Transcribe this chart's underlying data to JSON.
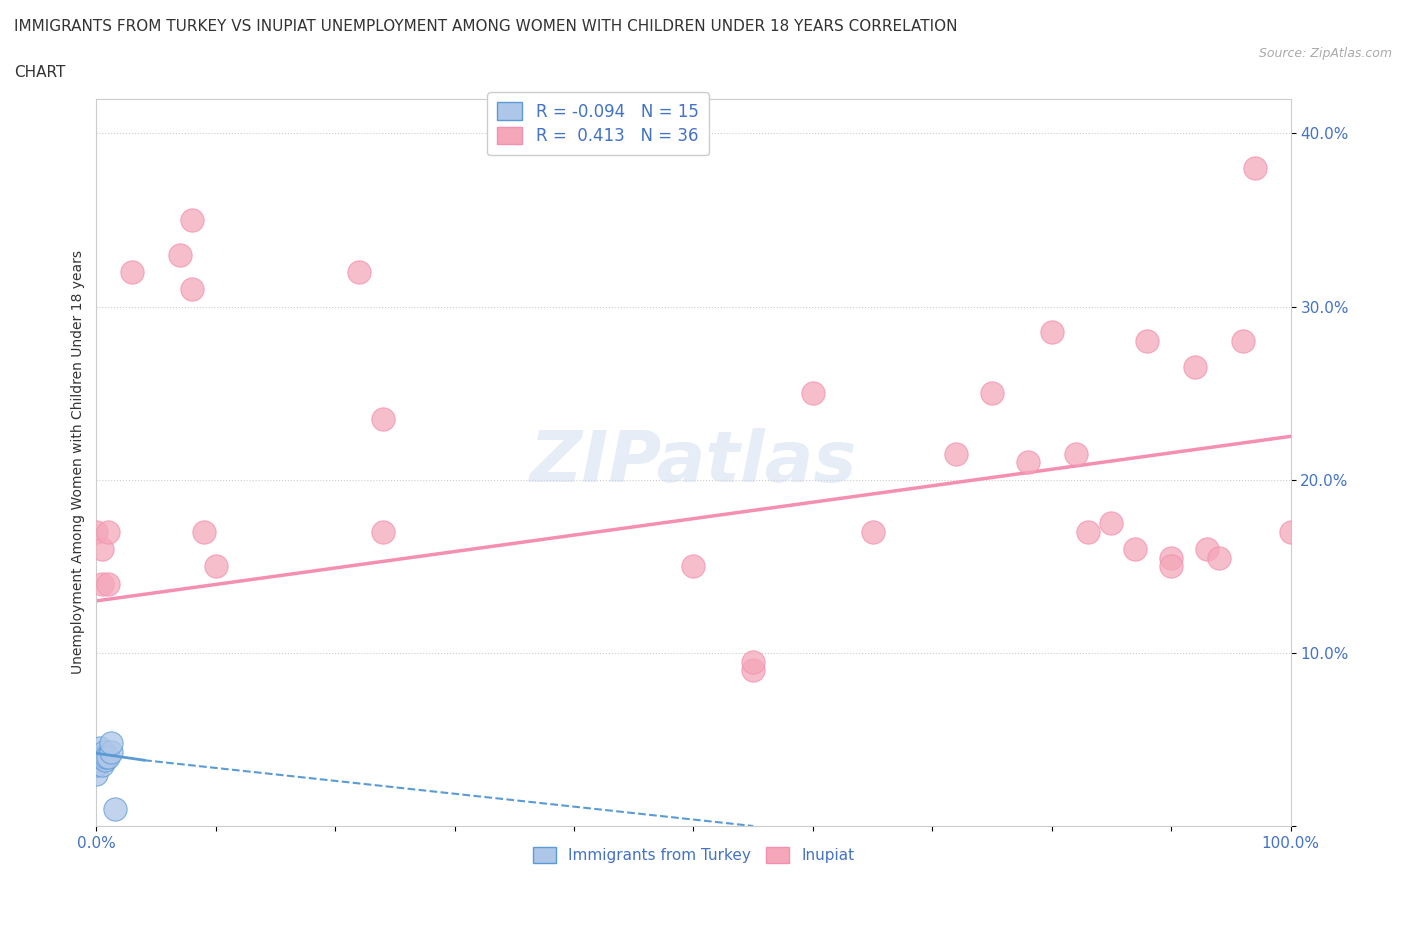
{
  "title_line1": "IMMIGRANTS FROM TURKEY VS INUPIAT UNEMPLOYMENT AMONG WOMEN WITH CHILDREN UNDER 18 YEARS CORRELATION",
  "title_line2": "CHART",
  "source": "Source: ZipAtlas.com",
  "ylabel": "Unemployment Among Women with Children Under 18 years",
  "xlim": [
    0,
    1.0
  ],
  "ylim": [
    0,
    0.42
  ],
  "xticks": [
    0.0,
    0.1,
    0.2,
    0.3,
    0.4,
    0.5,
    0.6,
    0.7,
    0.8,
    0.9,
    1.0
  ],
  "xticklabels": [
    "0.0%",
    "",
    "",
    "",
    "",
    "",
    "",
    "",
    "",
    "",
    "100.0%"
  ],
  "yticks": [
    0.0,
    0.1,
    0.2,
    0.3,
    0.4
  ],
  "yticklabels": [
    "",
    "10.0%",
    "20.0%",
    "30.0%",
    "40.0%"
  ],
  "watermark": "ZIPatlas",
  "turkey_color": "#aec6e8",
  "inupiat_color": "#f4a7b9",
  "turkey_line_color": "#5b9bd5",
  "inupiat_line_color": "#f48fb1",
  "turkey_scatter": {
    "x": [
      0.0,
      0.0,
      0.0,
      0.003,
      0.003,
      0.005,
      0.005,
      0.006,
      0.006,
      0.007,
      0.008,
      0.01,
      0.012,
      0.012,
      0.016
    ],
    "y": [
      0.03,
      0.04,
      0.035,
      0.04,
      0.045,
      0.035,
      0.04,
      0.04,
      0.043,
      0.038,
      0.04,
      0.04,
      0.043,
      0.048,
      0.01
    ]
  },
  "inupiat_scatter": {
    "x": [
      0.0,
      0.005,
      0.005,
      0.01,
      0.01,
      0.03,
      0.07,
      0.08,
      0.08,
      0.09,
      0.1,
      0.22,
      0.24,
      0.24,
      0.5,
      0.55,
      0.55,
      0.6,
      0.65,
      0.72,
      0.75,
      0.78,
      0.8,
      0.82,
      0.83,
      0.85,
      0.87,
      0.88,
      0.9,
      0.9,
      0.92,
      0.93,
      0.94,
      0.96,
      0.97,
      1.0
    ],
    "y": [
      0.17,
      0.14,
      0.16,
      0.14,
      0.17,
      0.32,
      0.33,
      0.35,
      0.31,
      0.17,
      0.15,
      0.32,
      0.235,
      0.17,
      0.15,
      0.09,
      0.095,
      0.25,
      0.17,
      0.215,
      0.25,
      0.21,
      0.285,
      0.215,
      0.17,
      0.175,
      0.16,
      0.28,
      0.155,
      0.15,
      0.265,
      0.16,
      0.155,
      0.28,
      0.38,
      0.17
    ]
  },
  "turkey_trend_solid": {
    "x": [
      0.0,
      0.04
    ],
    "y": [
      0.042,
      0.038
    ]
  },
  "turkey_trend_dashed": {
    "x": [
      0.04,
      0.55
    ],
    "y": [
      0.038,
      0.0
    ]
  },
  "inupiat_trend": {
    "x": [
      0.0,
      1.0
    ],
    "y": [
      0.13,
      0.225
    ]
  }
}
